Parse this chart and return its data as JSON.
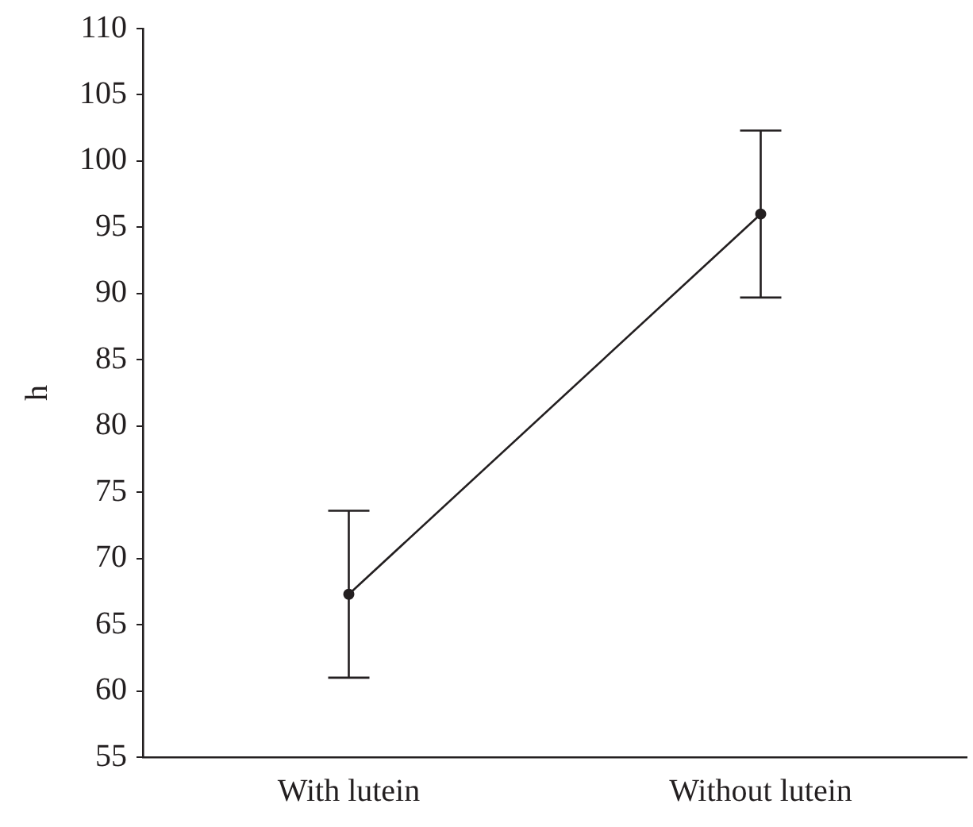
{
  "chart_data": {
    "type": "line",
    "ylabel": "h",
    "categories": [
      "With lutein",
      "Without lutein"
    ],
    "series": [
      {
        "color": "#231f20",
        "values": [
          67.3,
          96.0
        ],
        "errors": [
          6.3,
          6.3
        ]
      }
    ],
    "ylim": [
      55,
      110
    ],
    "yticks": [
      55,
      60,
      65,
      70,
      75,
      80,
      85,
      90,
      95,
      100,
      105,
      110
    ],
    "grid": false,
    "legend": false,
    "marker": "circle",
    "line_style": "solid"
  }
}
